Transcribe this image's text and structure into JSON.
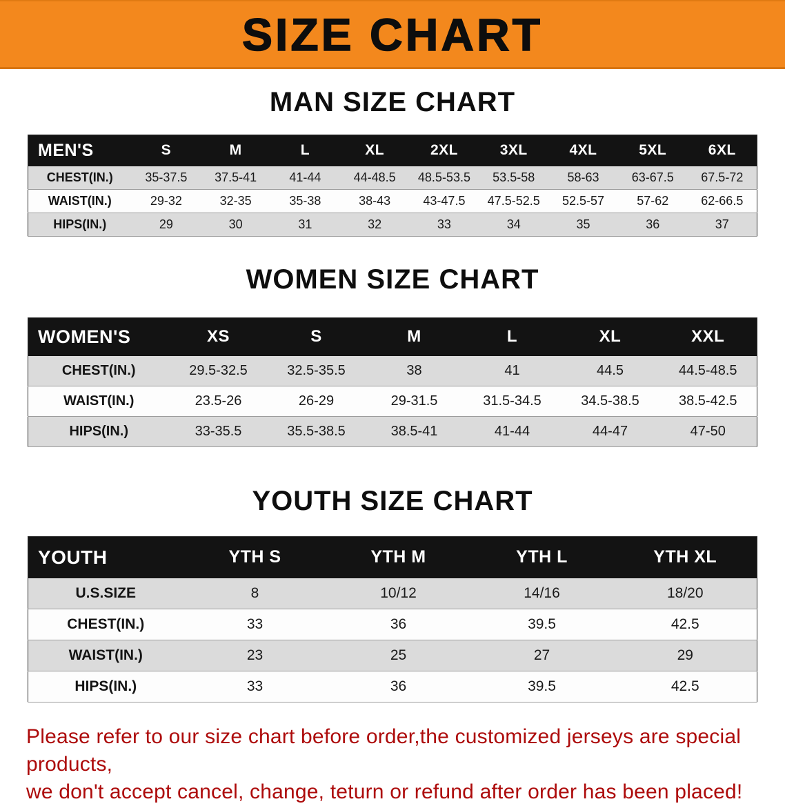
{
  "banner": {
    "title": "SIZE CHART"
  },
  "colors": {
    "banner_bg": "#f3881d",
    "table_header_bg": "#131313",
    "row_stripe": "#dbdbdb",
    "note_text": "#ad0b0b"
  },
  "sections": [
    {
      "heading": "MAN SIZE CHART",
      "table": {
        "header": [
          "MEN'S",
          "S",
          "M",
          "L",
          "XL",
          "2XL",
          "3XL",
          "4XL",
          "5XL",
          "6XL"
        ],
        "rows": [
          {
            "label": "CHEST(IN.)",
            "values": [
              "35-37.5",
              "37.5-41",
              "41-44",
              "44-48.5",
              "48.5-53.5",
              "53.5-58",
              "58-63",
              "63-67.5",
              "67.5-72"
            ]
          },
          {
            "label": "WAIST(IN.)",
            "values": [
              "29-32",
              "32-35",
              "35-38",
              "38-43",
              "43-47.5",
              "47.5-52.5",
              "52.5-57",
              "57-62",
              "62-66.5"
            ]
          },
          {
            "label": "HIPS(IN.)",
            "values": [
              "29",
              "30",
              "31",
              "32",
              "33",
              "34",
              "35",
              "36",
              "37"
            ]
          }
        ]
      }
    },
    {
      "heading": "WOMEN SIZE CHART",
      "table": {
        "header": [
          "WOMEN'S",
          "XS",
          "S",
          "M",
          "L",
          "XL",
          "XXL"
        ],
        "rows": [
          {
            "label": "CHEST(IN.)",
            "values": [
              "29.5-32.5",
              "32.5-35.5",
              "38",
              "41",
              "44.5",
              "44.5-48.5"
            ]
          },
          {
            "label": "WAIST(IN.)",
            "values": [
              "23.5-26",
              "26-29",
              "29-31.5",
              "31.5-34.5",
              "34.5-38.5",
              "38.5-42.5"
            ]
          },
          {
            "label": "HIPS(IN.)",
            "values": [
              "33-35.5",
              "35.5-38.5",
              "38.5-41",
              "41-44",
              "44-47",
              "47-50"
            ]
          }
        ]
      }
    },
    {
      "heading": "YOUTH SIZE CHART",
      "table": {
        "header": [
          "YOUTH",
          "YTH S",
          "YTH M",
          "YTH L",
          "YTH XL"
        ],
        "rows": [
          {
            "label": "U.S.SIZE",
            "values": [
              "8",
              "10/12",
              "14/16",
              "18/20"
            ]
          },
          {
            "label": "CHEST(IN.)",
            "values": [
              "33",
              "36",
              "39.5",
              "42.5"
            ]
          },
          {
            "label": "WAIST(IN.)",
            "values": [
              "23",
              "25",
              "27",
              "29"
            ]
          },
          {
            "label": "HIPS(IN.)",
            "values": [
              "33",
              "36",
              "39.5",
              "42.5"
            ]
          }
        ]
      }
    }
  ],
  "footer": {
    "line1": "Please refer to our size chart before order,the customized jerseys are special products,",
    "line2": "we don't accept cancel, change, teturn or refund after order has been placed!"
  }
}
